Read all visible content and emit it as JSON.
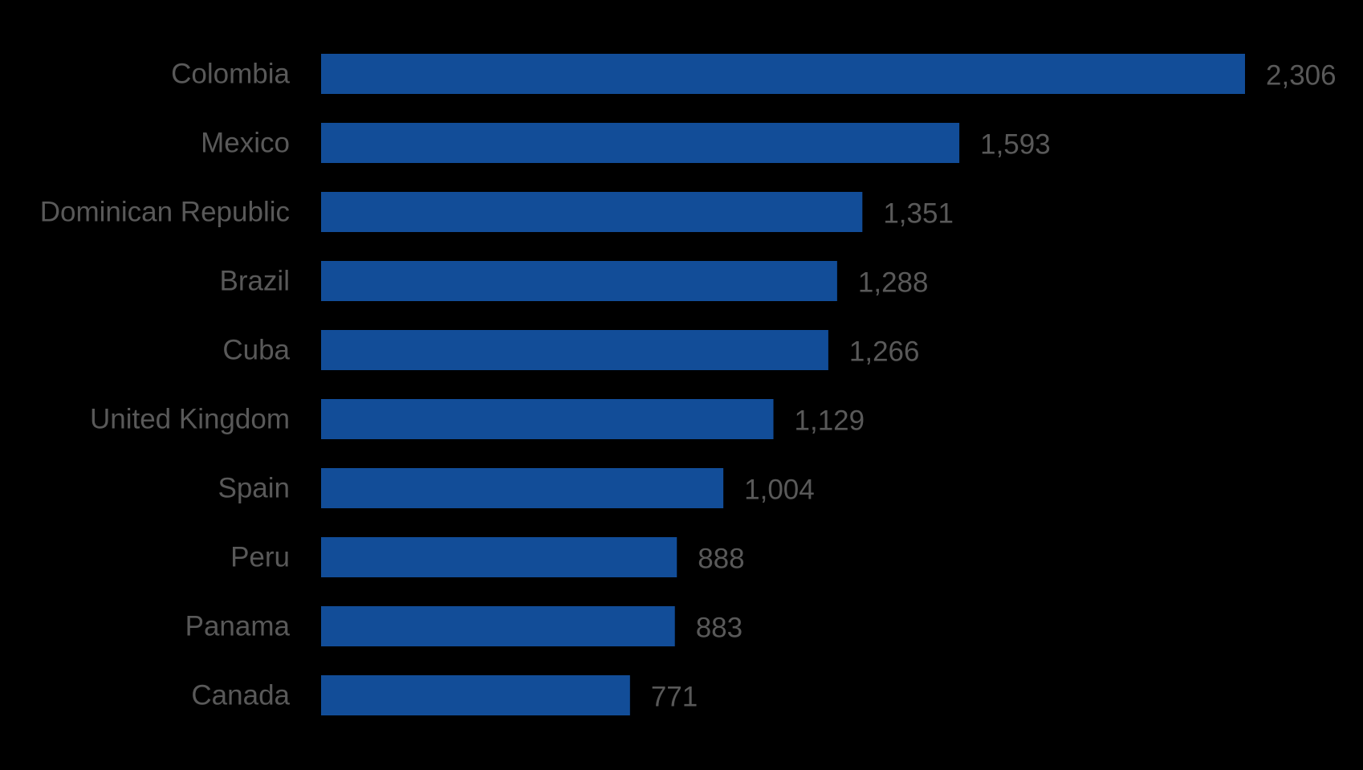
{
  "chart_data": {
    "type": "bar",
    "orientation": "horizontal",
    "title": "",
    "xlabel": "",
    "ylabel": "",
    "categories": [
      "Colombia",
      "Mexico",
      "Dominican Republic",
      "Brazil",
      "Cuba",
      "United Kingdom",
      "Spain",
      "Peru",
      "Panama",
      "Canada"
    ],
    "values": [
      2306,
      1593,
      1351,
      1288,
      1266,
      1129,
      1004,
      888,
      883,
      771
    ],
    "value_labels": [
      "2,306",
      "1,593",
      "1,351",
      "1,288",
      "1,266",
      "1,129",
      "1,004",
      "888",
      "883",
      "771"
    ],
    "xlim": [
      0,
      2306
    ],
    "grid": false,
    "legend": "none",
    "colors": {
      "bar": "#124D98",
      "background": "#000000",
      "label_text": "#595959"
    }
  }
}
